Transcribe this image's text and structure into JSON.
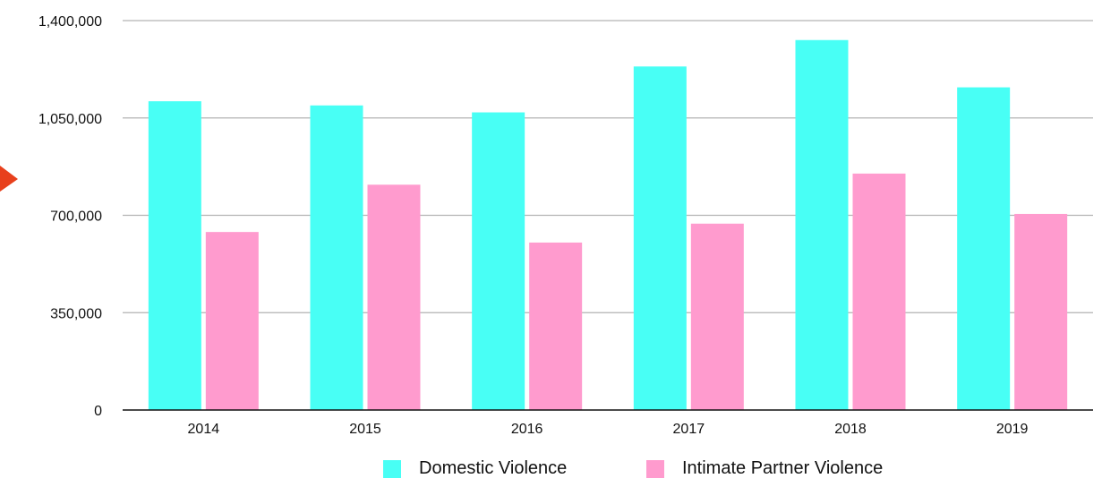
{
  "chart_data": {
    "type": "bar",
    "categories": [
      "2014",
      "2015",
      "2016",
      "2017",
      "2018",
      "2019"
    ],
    "series": [
      {
        "name": "Domestic Violence",
        "color": "#48FFF5",
        "values": [
          1110000,
          1095000,
          1070000,
          1235000,
          1330000,
          1160000
        ]
      },
      {
        "name": "Intimate Partner Violence",
        "color": "#FF9BCE",
        "values": [
          640000,
          810000,
          602000,
          670000,
          850000,
          705000
        ]
      }
    ],
    "ylim": [
      0,
      1400000
    ],
    "yticks": [
      0,
      350000,
      700000,
      1050000,
      1400000
    ],
    "ytick_labels": [
      "0",
      "350,000",
      "700,000",
      "1,050,000",
      "1,400,000"
    ],
    "grid": true,
    "legend_position": "bottom"
  },
  "decorations": {
    "marker_color": "#E8401C"
  }
}
